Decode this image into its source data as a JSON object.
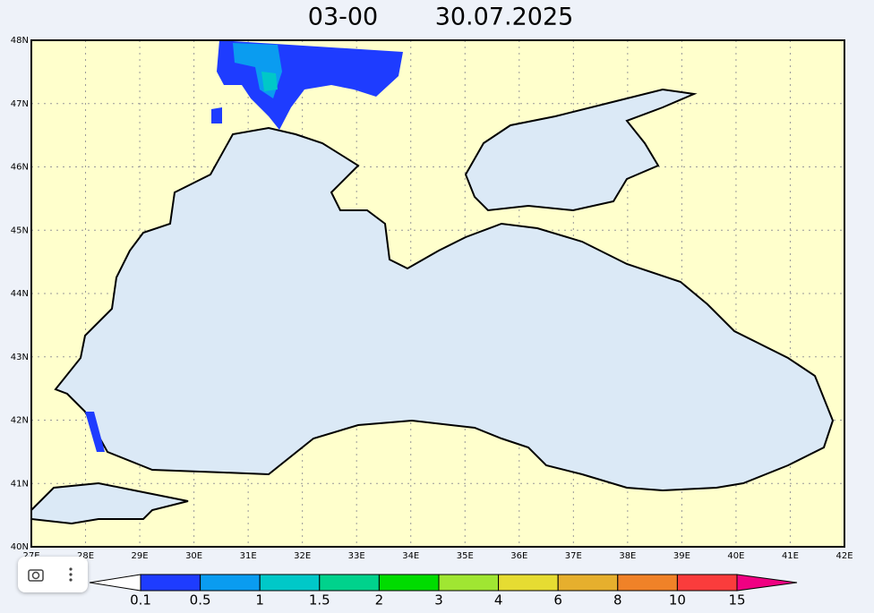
{
  "header": {
    "time": "03-00",
    "date": "30.07.2025"
  },
  "map": {
    "lat_labels": [
      "48N",
      "47N",
      "46N",
      "45N",
      "44N",
      "43N",
      "42N",
      "41N",
      "40N"
    ],
    "lon_labels": [
      "27E",
      "28E",
      "29E",
      "30E",
      "31E",
      "32E",
      "33E",
      "34E",
      "35E",
      "36E",
      "37E",
      "38E",
      "39E",
      "40E",
      "41E",
      "42E"
    ]
  },
  "legend": {
    "levels": [
      0.1,
      0.5,
      1,
      1.5,
      2,
      3,
      4,
      6,
      8,
      10,
      15
    ],
    "colors": [
      "#1e3cff",
      "#0a9cf0",
      "#00c8c8",
      "#00d28c",
      "#00dc00",
      "#a0e632",
      "#e6dc32",
      "#e6af2d",
      "#f08228",
      "#fa3c3c"
    ],
    "under_color": "#ffffff",
    "over_color": "#f00082"
  }
}
